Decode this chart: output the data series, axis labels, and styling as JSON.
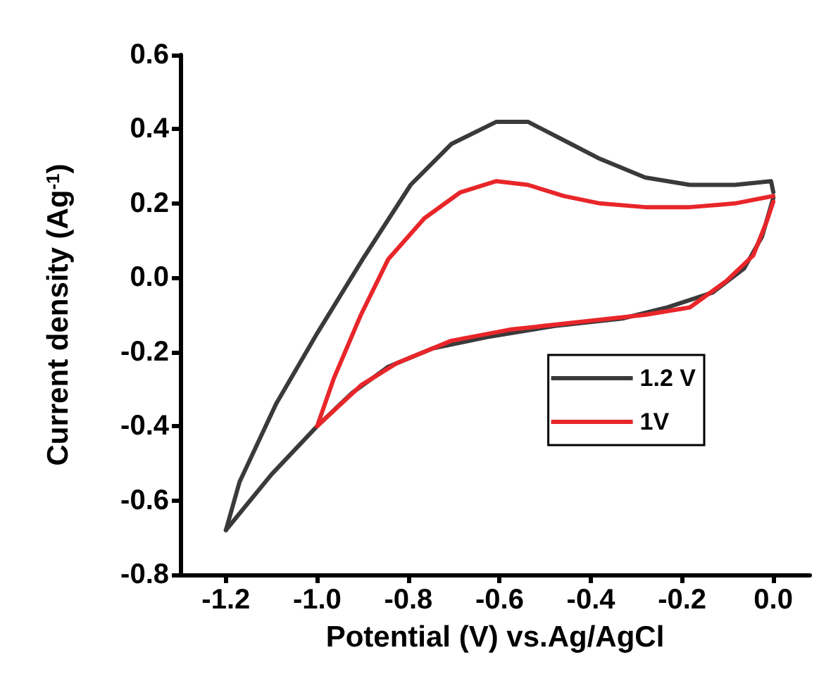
{
  "chart_data": {
    "type": "line",
    "xlabel": "Potential (V) vs.Ag/AgCl",
    "ylabel": "Current density (Ag$^{-1}$)",
    "xlim": [
      -1.3,
      0.08
    ],
    "ylim": [
      -0.8,
      0.6
    ],
    "xticks": [
      {
        "value": -1.2,
        "label": "-1.2"
      },
      {
        "value": -1.0,
        "label": "-1.0"
      },
      {
        "value": -0.8,
        "label": "-0.8"
      },
      {
        "value": -0.6,
        "label": "-0.6"
      },
      {
        "value": -0.4,
        "label": "-0.4"
      },
      {
        "value": -0.2,
        "label": "-0.2"
      },
      {
        "value": 0,
        "label": "0.0"
      }
    ],
    "yticks": [
      {
        "value": -0.8,
        "label": "-0.8"
      },
      {
        "value": -0.6,
        "label": "-0.6"
      },
      {
        "value": -0.4,
        "label": "-0.4"
      },
      {
        "value": -0.2,
        "label": "-0.2"
      },
      {
        "value": 0,
        "label": "0.0"
      },
      {
        "value": 0.2,
        "label": "0.2"
      },
      {
        "value": 0.4,
        "label": "0.4"
      },
      {
        "value": 0.6,
        "label": "0.6"
      }
    ],
    "legend": "right",
    "marker": "none",
    "line_style": "solid",
    "grid": false,
    "series": [
      {
        "name": "1.2 V",
        "color": "#3a3a3a",
        "x": [
          -1.2,
          -1.17,
          -1.09,
          -1.0,
          -0.9,
          -0.795,
          -0.706,
          -0.607,
          -0.538,
          -0.459,
          -0.38,
          -0.281,
          -0.183,
          -0.084,
          -0.005,
          0
        ],
        "values": [
          -0.68,
          -0.55,
          -0.34,
          -0.15,
          0.05,
          0.25,
          0.36,
          0.42,
          0.42,
          0.37,
          0.32,
          0.27,
          0.25,
          0.25,
          0.26,
          0.23
        ]
      },
      {
        "color": "#3a3a3a",
        "x": [
          -1.2,
          -1.1,
          -1.0,
          -0.923,
          -0.844,
          -0.746,
          -0.627,
          -0.479,
          -0.331,
          -0.232,
          -0.133,
          -0.064,
          -0.025,
          0
        ],
        "values": [
          -0.68,
          -0.53,
          -0.4,
          -0.31,
          -0.24,
          -0.19,
          -0.16,
          -0.13,
          -0.11,
          -0.08,
          -0.04,
          0.025,
          0.11,
          0.215
        ]
      },
      {
        "name": "1V",
        "color": "#e8262a",
        "x": [
          -1.0,
          -0.963,
          -0.904,
          -0.844,
          -0.765,
          -0.686,
          -0.607,
          -0.538,
          -0.459,
          -0.38,
          -0.281,
          -0.183,
          -0.084,
          0
        ],
        "values": [
          -0.4,
          -0.27,
          -0.1,
          0.05,
          0.16,
          0.23,
          0.26,
          0.25,
          0.22,
          0.2,
          0.19,
          0.19,
          0.2,
          0.22
        ]
      },
      {
        "color": "#e8262a",
        "x": [
          -1.0,
          -0.904,
          -0.825,
          -0.706,
          -0.578,
          -0.43,
          -0.281,
          -0.183,
          -0.104,
          -0.044,
          -0.015,
          0
        ],
        "values": [
          -0.4,
          -0.29,
          -0.23,
          -0.17,
          -0.14,
          -0.12,
          -0.1,
          -0.08,
          -0.01,
          0.06,
          0.15,
          0.205
        ]
      }
    ]
  }
}
